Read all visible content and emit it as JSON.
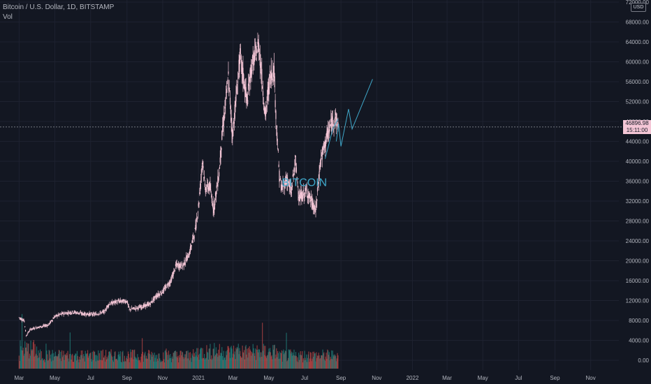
{
  "header": {
    "symbol": "Bitcoin / U.S. Dollar, 1D, BITSTAMP",
    "volume_label": "Vol"
  },
  "price_scale": {
    "currency": "USD",
    "last_price": "46896.98",
    "countdown": "15:11:00"
  },
  "colors": {
    "background": "#131722",
    "grid": "#1e2230",
    "candle": "#f4c6d6",
    "vol_up": "#26a69a",
    "vol_down": "#ef5350",
    "projection": "#3fa7c9",
    "price_line": "#9598a1"
  },
  "chart_data": {
    "type": "candlestick",
    "title": "Bitcoin / U.S. Dollar, 1D, BITSTAMP",
    "y_ticks": [
      "72000.00",
      "68000.00",
      "64000.00",
      "60000.00",
      "56000.00",
      "52000.00",
      "48000.00",
      "44000.00",
      "40000.00",
      "36000.00",
      "32000.00",
      "28000.00",
      "24000.00",
      "20000.00",
      "16000.00",
      "12000.00",
      "8000.00",
      "4000.00",
      "0.00"
    ],
    "x_ticks": [
      "Mar",
      "May",
      "Jul",
      "Sep",
      "Nov",
      "2021",
      "Mar",
      "May",
      "Jul",
      "Sep",
      "Nov",
      "2022",
      "Mar",
      "May",
      "Jul",
      "Sep",
      "Nov"
    ],
    "ylim": [
      0,
      72000
    ],
    "close_series": [
      {
        "date": "2020-03-01",
        "close": 8600
      },
      {
        "date": "2020-03-10",
        "close": 7900
      },
      {
        "date": "2020-03-13",
        "close": 4900
      },
      {
        "date": "2020-03-20",
        "close": 6200
      },
      {
        "date": "2020-04-01",
        "close": 6600
      },
      {
        "date": "2020-04-20",
        "close": 7100
      },
      {
        "date": "2020-05-01",
        "close": 8800
      },
      {
        "date": "2020-05-15",
        "close": 9400
      },
      {
        "date": "2020-06-01",
        "close": 9700
      },
      {
        "date": "2020-06-20",
        "close": 9300
      },
      {
        "date": "2020-07-10",
        "close": 9250
      },
      {
        "date": "2020-07-25",
        "close": 9800
      },
      {
        "date": "2020-08-01",
        "close": 11300
      },
      {
        "date": "2020-08-15",
        "close": 11800
      },
      {
        "date": "2020-09-01",
        "close": 11900
      },
      {
        "date": "2020-09-05",
        "close": 10200
      },
      {
        "date": "2020-09-25",
        "close": 10700
      },
      {
        "date": "2020-10-10",
        "close": 11300
      },
      {
        "date": "2020-10-21",
        "close": 12900
      },
      {
        "date": "2020-11-01",
        "close": 13800
      },
      {
        "date": "2020-11-15",
        "close": 16000
      },
      {
        "date": "2020-11-24",
        "close": 19100
      },
      {
        "date": "2020-12-05",
        "close": 19000
      },
      {
        "date": "2020-12-16",
        "close": 21300
      },
      {
        "date": "2020-12-27",
        "close": 26400
      },
      {
        "date": "2021-01-02",
        "close": 32000
      },
      {
        "date": "2021-01-08",
        "close": 40500
      },
      {
        "date": "2021-01-12",
        "close": 34500
      },
      {
        "date": "2021-01-20",
        "close": 35000
      },
      {
        "date": "2021-01-27",
        "close": 30500
      },
      {
        "date": "2021-02-05",
        "close": 37500
      },
      {
        "date": "2021-02-10",
        "close": 44800
      },
      {
        "date": "2021-02-21",
        "close": 57000
      },
      {
        "date": "2021-02-28",
        "close": 45200
      },
      {
        "date": "2021-03-13",
        "close": 61000
      },
      {
        "date": "2021-03-25",
        "close": 52000
      },
      {
        "date": "2021-04-01",
        "close": 58800
      },
      {
        "date": "2021-04-14",
        "close": 63500
      },
      {
        "date": "2021-04-25",
        "close": 49000
      },
      {
        "date": "2021-05-03",
        "close": 57000
      },
      {
        "date": "2021-05-10",
        "close": 58500
      },
      {
        "date": "2021-05-13",
        "close": 49500
      },
      {
        "date": "2021-05-19",
        "close": 37000
      },
      {
        "date": "2021-05-23",
        "close": 34500
      },
      {
        "date": "2021-06-01",
        "close": 36500
      },
      {
        "date": "2021-06-08",
        "close": 33500
      },
      {
        "date": "2021-06-15",
        "close": 40000
      },
      {
        "date": "2021-06-22",
        "close": 32500
      },
      {
        "date": "2021-07-05",
        "close": 34000
      },
      {
        "date": "2021-07-20",
        "close": 29800
      },
      {
        "date": "2021-07-28",
        "close": 40000
      },
      {
        "date": "2021-08-07",
        "close": 44500
      },
      {
        "date": "2021-08-14",
        "close": 47000
      },
      {
        "date": "2021-08-22",
        "close": 49000
      },
      {
        "date": "2021-08-27",
        "close": 46897
      }
    ],
    "volume": {
      "ylim": [
        0,
        12000
      ]
    },
    "projection": [
      {
        "date": "2021-08-24",
        "value": 44000
      },
      {
        "date": "2021-08-28",
        "value": 47500
      },
      {
        "date": "2021-09-01",
        "value": 43000
      },
      {
        "date": "2021-09-14",
        "value": 50500
      },
      {
        "date": "2021-09-20",
        "value": 46500
      },
      {
        "date": "2021-10-25",
        "value": 56500
      }
    ],
    "projection_inner": [
      {
        "date": "2021-08-05",
        "value": 40500
      },
      {
        "date": "2021-08-18",
        "value": 46500
      },
      {
        "date": "2021-08-27",
        "value": 48500
      }
    ],
    "annotation": "BITCOIN",
    "last_price": 46896.98
  }
}
